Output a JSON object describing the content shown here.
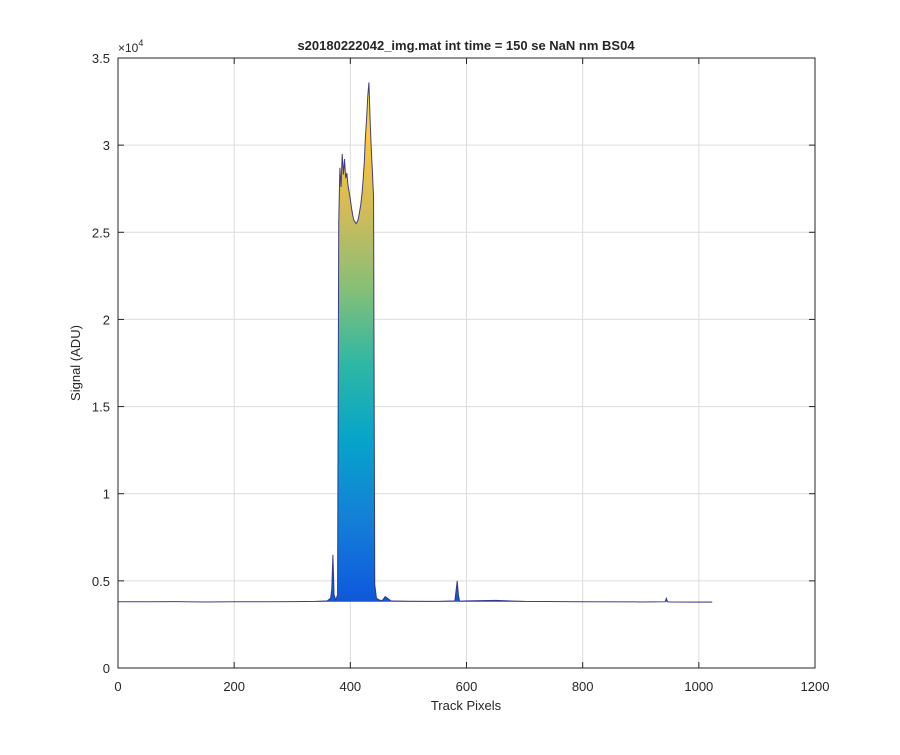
{
  "chart_data": {
    "type": "area",
    "title": "s20180222042_img.mat int time = 150 se  NaN nm BS04",
    "xlabel": "Track Pixels",
    "ylabel": "Signal (ADU)",
    "xlim": [
      0,
      1200
    ],
    "ylim": [
      0,
      35000
    ],
    "x_ticks": [
      0,
      200,
      400,
      600,
      800,
      1000,
      1200
    ],
    "x_tick_labels": [
      "0",
      "200",
      "400",
      "600",
      "800",
      "1000",
      "1200"
    ],
    "y_ticks": [
      0,
      5000,
      10000,
      15000,
      20000,
      25000,
      30000,
      35000
    ],
    "y_tick_labels": [
      "0",
      "0.5",
      "1",
      "1.5",
      "2",
      "2.5",
      "3",
      "3.5"
    ],
    "y_exponent_label": "×10",
    "y_exponent_power": "4",
    "grid": true,
    "colormap": [
      "#352a87",
      "#0f5cdd",
      "#1481d6",
      "#06a4ca",
      "#2eb7a4",
      "#87bf77",
      "#d1bb59",
      "#fec832",
      "#f9fb0e"
    ],
    "baseline_color": "#2e2a80",
    "baseline_signal": 3800,
    "series": [
      {
        "x": [
          0,
          50,
          100,
          150,
          200,
          250,
          300,
          340,
          360,
          366,
          368,
          370,
          372,
          375,
          378,
          380,
          382,
          384,
          386,
          388,
          390,
          392,
          394,
          396,
          398,
          400,
          402,
          404,
          406,
          408,
          410,
          412,
          414,
          416,
          418,
          420,
          422,
          424,
          426,
          428,
          430,
          432,
          434,
          436,
          438,
          440,
          442,
          445,
          450,
          455,
          460,
          470,
          500,
          550,
          580,
          584,
          586,
          588,
          590,
          600,
          650,
          700,
          800,
          900,
          942,
          944,
          946,
          950,
          1000,
          1023
        ],
        "y": [
          3800,
          3800,
          3810,
          3790,
          3800,
          3800,
          3810,
          3820,
          3850,
          4000,
          4500,
          6500,
          4200,
          3900,
          4200,
          25500,
          28700,
          27600,
          29500,
          28300,
          29200,
          28100,
          28400,
          27700,
          27300,
          26900,
          26400,
          26000,
          25700,
          25600,
          25500,
          25600,
          25800,
          26200,
          26600,
          27200,
          28000,
          29000,
          30500,
          31500,
          32800,
          33600,
          31500,
          29800,
          28500,
          27000,
          4800,
          4000,
          3900,
          3870,
          4100,
          3850,
          3830,
          3820,
          3850,
          5000,
          4200,
          3850,
          3840,
          3850,
          3880,
          3820,
          3800,
          3790,
          3800,
          4000,
          3800,
          3790,
          3780,
          3780
        ]
      }
    ]
  }
}
